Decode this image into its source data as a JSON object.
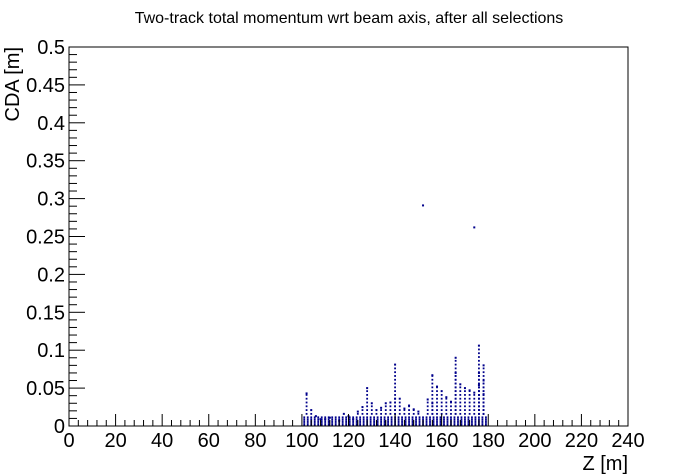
{
  "chart_data": {
    "type": "scatter",
    "title": "Two-track total momentum wrt beam axis, after all selections",
    "xlabel": "Z [m]",
    "ylabel": "CDA [m]",
    "xlim": [
      0,
      240
    ],
    "ylim": [
      0,
      0.5
    ],
    "x_ticks": [
      "0",
      "20",
      "40",
      "60",
      "80",
      "100",
      "120",
      "140",
      "160",
      "180",
      "200",
      "220",
      "240"
    ],
    "y_ticks": [
      "0",
      "0.05",
      "0.1",
      "0.15",
      "0.2",
      "0.25",
      "0.3",
      "0.35",
      "0.4",
      "0.45",
      "0.5"
    ],
    "grid": false,
    "legend": "none",
    "marker_color": "#00008b",
    "points": [
      [
        102,
        0.043
      ],
      [
        104,
        0.021
      ],
      [
        106,
        0.013
      ],
      [
        108,
        0.009
      ],
      [
        110,
        0.009
      ],
      [
        112,
        0.011
      ],
      [
        116,
        0.007
      ],
      [
        118,
        0.016
      ],
      [
        120,
        0.013
      ],
      [
        122,
        0.009
      ],
      [
        124,
        0.019
      ],
      [
        126,
        0.025
      ],
      [
        128,
        0.05
      ],
      [
        130,
        0.03
      ],
      [
        132,
        0.021
      ],
      [
        134,
        0.024
      ],
      [
        136,
        0.03
      ],
      [
        138,
        0.031
      ],
      [
        140,
        0.081
      ],
      [
        140,
        0.036
      ],
      [
        142,
        0.036
      ],
      [
        144,
        0.023
      ],
      [
        146,
        0.027
      ],
      [
        148,
        0.022
      ],
      [
        150,
        0.019
      ],
      [
        152,
        0.291
      ],
      [
        154,
        0.035
      ],
      [
        156,
        0.067
      ],
      [
        156,
        0.03
      ],
      [
        158,
        0.052
      ],
      [
        160,
        0.046
      ],
      [
        162,
        0.038
      ],
      [
        164,
        0.032
      ],
      [
        166,
        0.09
      ],
      [
        166,
        0.07
      ],
      [
        168,
        0.055
      ],
      [
        170,
        0.05
      ],
      [
        172,
        0.047
      ],
      [
        174,
        0.262
      ],
      [
        174,
        0.044
      ],
      [
        176,
        0.106
      ],
      [
        176,
        0.07
      ],
      [
        176,
        0.054
      ],
      [
        178,
        0.08
      ],
      [
        178,
        0.06
      ],
      [
        178,
        0.042
      ]
    ],
    "dense_band": {
      "x_range": [
        100,
        180
      ],
      "cda_max": 0.012
    }
  }
}
